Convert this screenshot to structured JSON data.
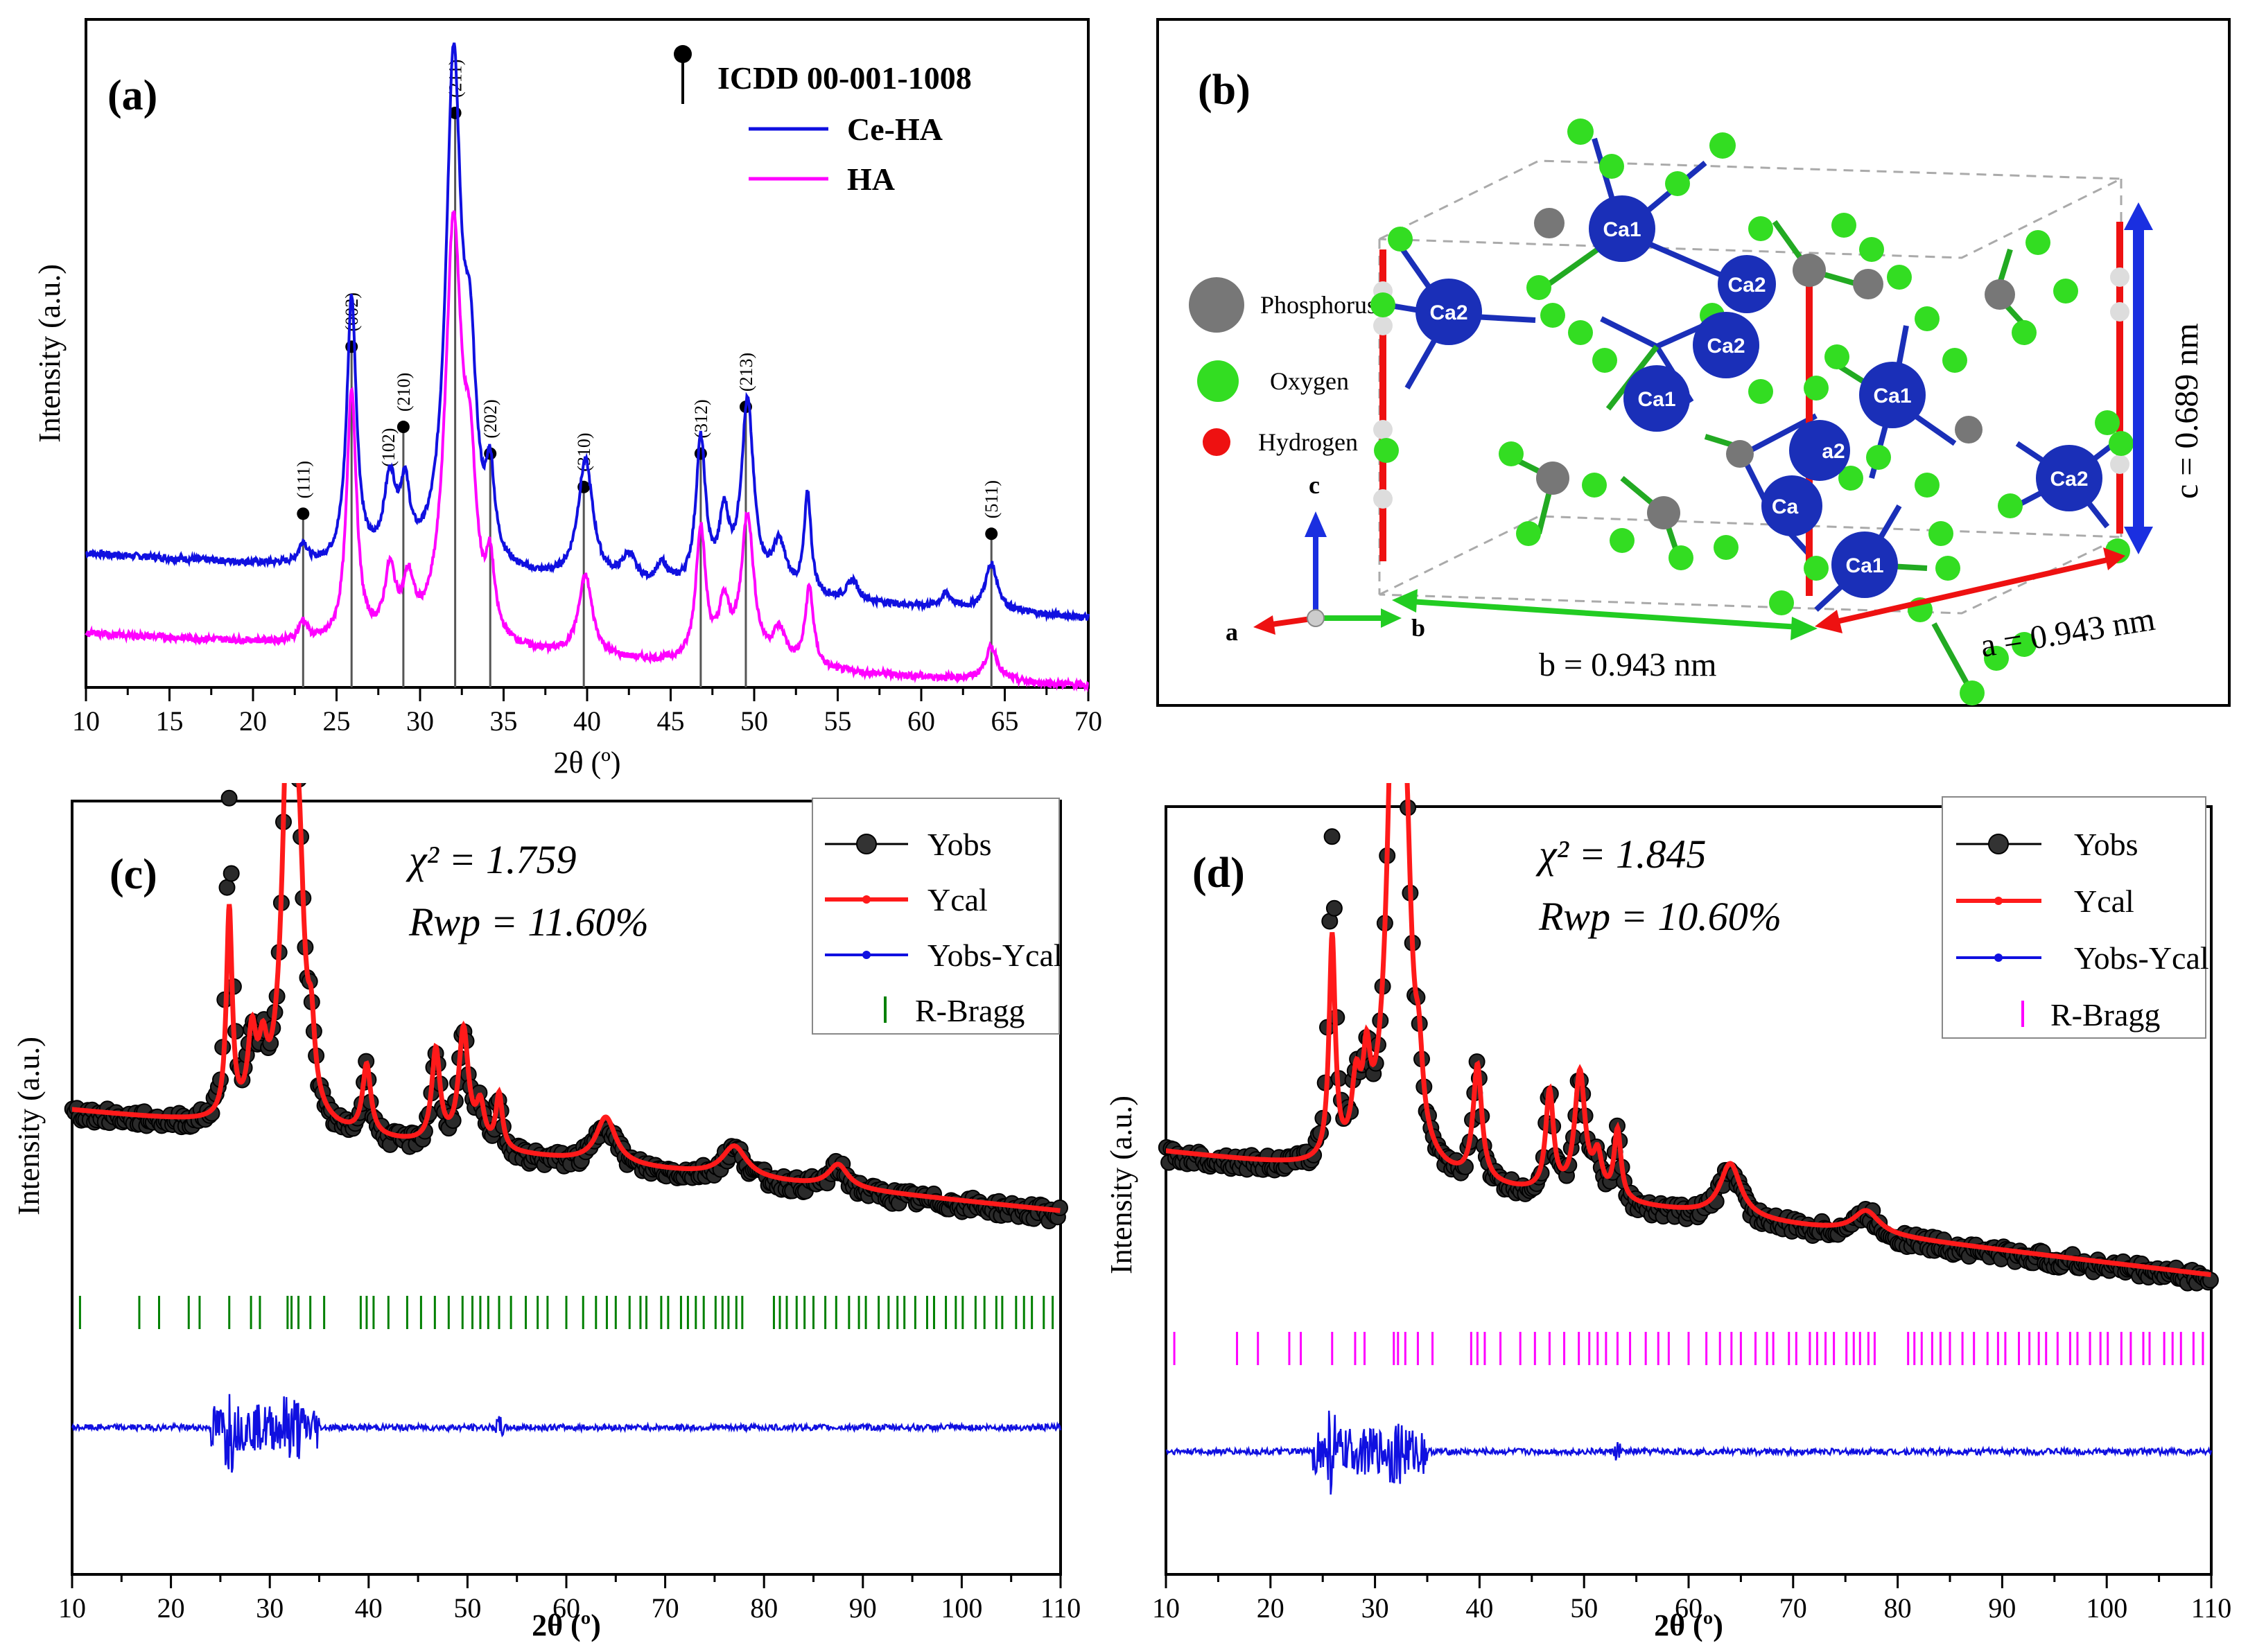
{
  "chart_data": [
    {
      "panel": "(a)",
      "type": "line",
      "xlabel": "2θ (º)",
      "ylabel": "Intensity (a.u.)",
      "xlim": [
        10,
        70
      ],
      "xticks": [
        10,
        15,
        20,
        25,
        30,
        35,
        40,
        45,
        50,
        55,
        60,
        65,
        70
      ],
      "legend": {
        "reference": "ICDD 00-001-1008",
        "entries": [
          "Ce-HA",
          "HA"
        ]
      },
      "colors": {
        "Ce-HA": "#1010e0",
        "HA": "#ff00ff"
      },
      "reference_peaks": [
        {
          "two_theta": 23.0,
          "hkl": "(111)",
          "height": 0.26
        },
        {
          "two_theta": 25.9,
          "hkl": "(002)",
          "height": 0.51
        },
        {
          "two_theta": 28.1,
          "hkl": "(102)",
          "height": 0,
          "label_only": true
        },
        {
          "two_theta": 29.0,
          "hkl": "(210)",
          "height": 0.39
        },
        {
          "two_theta": 32.1,
          "hkl": "(211)",
          "height": 0.86
        },
        {
          "two_theta": 34.2,
          "hkl": "(202)",
          "height": 0.35
        },
        {
          "two_theta": 39.8,
          "hkl": "(310)",
          "height": 0.3
        },
        {
          "two_theta": 46.8,
          "hkl": "(312)",
          "height": 0.35
        },
        {
          "two_theta": 49.5,
          "hkl": "(213)",
          "height": 0.42
        },
        {
          "two_theta": 64.2,
          "hkl": "(511)",
          "height": 0.23
        }
      ],
      "series": [
        {
          "name": "Ce-HA",
          "offset": 0.2,
          "slope": -0.0016,
          "peaks": [
            [
              23.0,
              0.03,
              0.3
            ],
            [
              25.9,
              0.4,
              0.35
            ],
            [
              28.2,
              0.12,
              0.45
            ],
            [
              29.1,
              0.1,
              0.35
            ],
            [
              32.0,
              0.75,
              0.55
            ],
            [
              33.0,
              0.25,
              0.45
            ],
            [
              34.2,
              0.12,
              0.3
            ],
            [
              39.9,
              0.18,
              0.55
            ],
            [
              42.5,
              0.04,
              0.5
            ],
            [
              44.5,
              0.03,
              0.4
            ],
            [
              46.8,
              0.22,
              0.35
            ],
            [
              48.2,
              0.1,
              0.35
            ],
            [
              49.6,
              0.28,
              0.45
            ],
            [
              51.5,
              0.07,
              0.5
            ],
            [
              53.2,
              0.15,
              0.25
            ],
            [
              55.9,
              0.03,
              0.4
            ],
            [
              61.5,
              0.02,
              0.4
            ],
            [
              64.2,
              0.07,
              0.45
            ]
          ]
        },
        {
          "name": "HA",
          "offset": 0.08,
          "slope": -0.0013,
          "peaks": [
            [
              23.0,
              0.03,
              0.3
            ],
            [
              25.9,
              0.38,
              0.35
            ],
            [
              28.2,
              0.1,
              0.4
            ],
            [
              29.3,
              0.08,
              0.4
            ],
            [
              32.0,
              0.62,
              0.6
            ],
            [
              33.0,
              0.2,
              0.45
            ],
            [
              34.2,
              0.1,
              0.3
            ],
            [
              39.9,
              0.12,
              0.5
            ],
            [
              46.8,
              0.2,
              0.35
            ],
            [
              48.2,
              0.08,
              0.4
            ],
            [
              49.6,
              0.22,
              0.45
            ],
            [
              51.5,
              0.05,
              0.5
            ],
            [
              53.3,
              0.12,
              0.3
            ],
            [
              64.2,
              0.05,
              0.45
            ]
          ]
        }
      ]
    },
    {
      "panel": "(c)",
      "type": "scatter",
      "xlabel": "2θ (º)",
      "ylabel": "Intensity (a.u.)",
      "xlim": [
        10,
        110
      ],
      "xticks": [
        10,
        20,
        30,
        40,
        50,
        60,
        70,
        80,
        90,
        100,
        110
      ],
      "chi2_label": "χ² = 1.759",
      "rwp_label": "Rwp = 11.60%",
      "legend": [
        "Yobs",
        "Ycal",
        "Yobs-Ycal",
        "R-Bragg"
      ],
      "bragg_color": "#008000",
      "bragg_positions": [
        10.8,
        16.8,
        18.8,
        21.8,
        22.9,
        25.9,
        28.1,
        29.0,
        31.8,
        32.2,
        32.9,
        34.1,
        35.5,
        39.2,
        39.8,
        40.5,
        42.0,
        43.9,
        45.3,
        46.7,
        48.1,
        49.5,
        50.5,
        51.3,
        52.1,
        53.2,
        54.4,
        55.9,
        57.1,
        58.1,
        60.0,
        61.7,
        63.0,
        64.1,
        65.0,
        66.4,
        67.5,
        68.1,
        69.6,
        70.3,
        71.6,
        72.3,
        73.1,
        73.9,
        75.1,
        75.8,
        76.4,
        77.2,
        77.8,
        81.0,
        81.6,
        82.3,
        83.3,
        84.1,
        85.0,
        86.2,
        87.3,
        88.6,
        89.6,
        90.3,
        91.6,
        92.6,
        93.5,
        94.2,
        95.3,
        96.5,
        97.2,
        98.4,
        99.4,
        100.1,
        101.4,
        102.3,
        103.5,
        104.1,
        105.5,
        106.3,
        107.1,
        108.3,
        109.2
      ],
      "profile": {
        "baseline_start": 0.6,
        "baseline_end": 0.47,
        "peaks": [
          [
            25.9,
            0.27,
            0.35
          ],
          [
            28.2,
            0.1,
            0.5
          ],
          [
            29.3,
            0.07,
            0.5
          ],
          [
            32.0,
            0.62,
            0.75
          ],
          [
            33.0,
            0.2,
            0.6
          ],
          [
            34.2,
            0.08,
            0.4
          ],
          [
            39.8,
            0.09,
            0.5
          ],
          [
            46.8,
            0.12,
            0.5
          ],
          [
            49.6,
            0.15,
            0.6
          ],
          [
            51.3,
            0.05,
            0.5
          ],
          [
            53.2,
            0.07,
            0.4
          ],
          [
            64.0,
            0.06,
            1.2
          ],
          [
            77.0,
            0.04,
            1.5
          ],
          [
            87.5,
            0.03,
            1.2
          ]
        ]
      },
      "obs_excess": [
        [
          25.9,
          0.14,
          0.4
        ]
      ]
    },
    {
      "panel": "(d)",
      "type": "scatter",
      "xlabel": "2θ (º)",
      "ylabel": "Intensity (a.u.)",
      "xlim": [
        10,
        110
      ],
      "xticks": [
        10,
        20,
        30,
        40,
        50,
        60,
        70,
        80,
        90,
        100,
        110
      ],
      "chi2_label": "χ² = 1.845",
      "rwp_label": "Rwp = 10.60%",
      "legend": [
        "Yobs",
        "Ycal",
        "Yobs-Ycal",
        "R-Bragg"
      ],
      "bragg_color": "#ff00ff",
      "bragg_positions": [
        10.8,
        16.8,
        18.8,
        21.8,
        22.9,
        25.9,
        28.1,
        29.0,
        31.8,
        32.2,
        32.9,
        34.1,
        35.5,
        39.2,
        39.8,
        40.5,
        42.0,
        43.9,
        45.3,
        46.7,
        48.1,
        49.5,
        50.5,
        51.3,
        52.1,
        53.2,
        54.4,
        55.9,
        57.1,
        58.1,
        60.0,
        61.7,
        63.0,
        64.1,
        65.0,
        66.4,
        67.5,
        68.1,
        69.6,
        70.3,
        71.6,
        72.3,
        73.1,
        73.9,
        75.1,
        75.8,
        76.4,
        77.2,
        77.8,
        81.0,
        81.6,
        82.3,
        83.3,
        84.1,
        85.0,
        86.2,
        87.3,
        88.6,
        89.6,
        90.3,
        91.6,
        92.6,
        93.5,
        94.2,
        95.3,
        96.5,
        97.2,
        98.4,
        99.4,
        100.1,
        101.4,
        102.3,
        103.5,
        104.1,
        105.5,
        106.3,
        107.1,
        108.3,
        109.2
      ],
      "profile": {
        "baseline_start": 0.55,
        "baseline_end": 0.39,
        "peaks": [
          [
            25.9,
            0.29,
            0.35
          ],
          [
            28.2,
            0.09,
            0.5
          ],
          [
            29.2,
            0.1,
            0.4
          ],
          [
            32.0,
            0.82,
            0.8
          ],
          [
            33.0,
            0.22,
            0.6
          ],
          [
            34.2,
            0.08,
            0.4
          ],
          [
            39.8,
            0.15,
            0.5
          ],
          [
            46.7,
            0.13,
            0.45
          ],
          [
            49.6,
            0.16,
            0.6
          ],
          [
            51.3,
            0.05,
            0.5
          ],
          [
            53.2,
            0.09,
            0.4
          ],
          [
            64.0,
            0.07,
            1.2
          ],
          [
            77.0,
            0.03,
            1.5
          ]
        ]
      },
      "obs_excess": [
        [
          25.9,
          0.14,
          0.4
        ]
      ]
    }
  ],
  "crystal": {
    "panel": "(b)",
    "legend": [
      "Phosphorus",
      "Oxygen",
      "Hydrogen"
    ],
    "atom_labels": {
      "ca1": "Ca1",
      "ca2": "Ca2",
      "partial_a2": "a2",
      "partial_ca": "Ca"
    },
    "axes": {
      "a": "a",
      "b": "b",
      "c": "c"
    },
    "lattice": {
      "a": "a = 0.943 nm",
      "b": "b = 0.943 nm",
      "c": "c = 0.689 nm"
    },
    "colors": {
      "ca": "#1a2fb8",
      "oxygen": "#33dd22",
      "phosphorus": "#777777",
      "hydrogen": "#ee1111",
      "a_axis": "#ee1111",
      "b_axis": "#22cc22",
      "c_axis": "#1a2fe0"
    }
  }
}
